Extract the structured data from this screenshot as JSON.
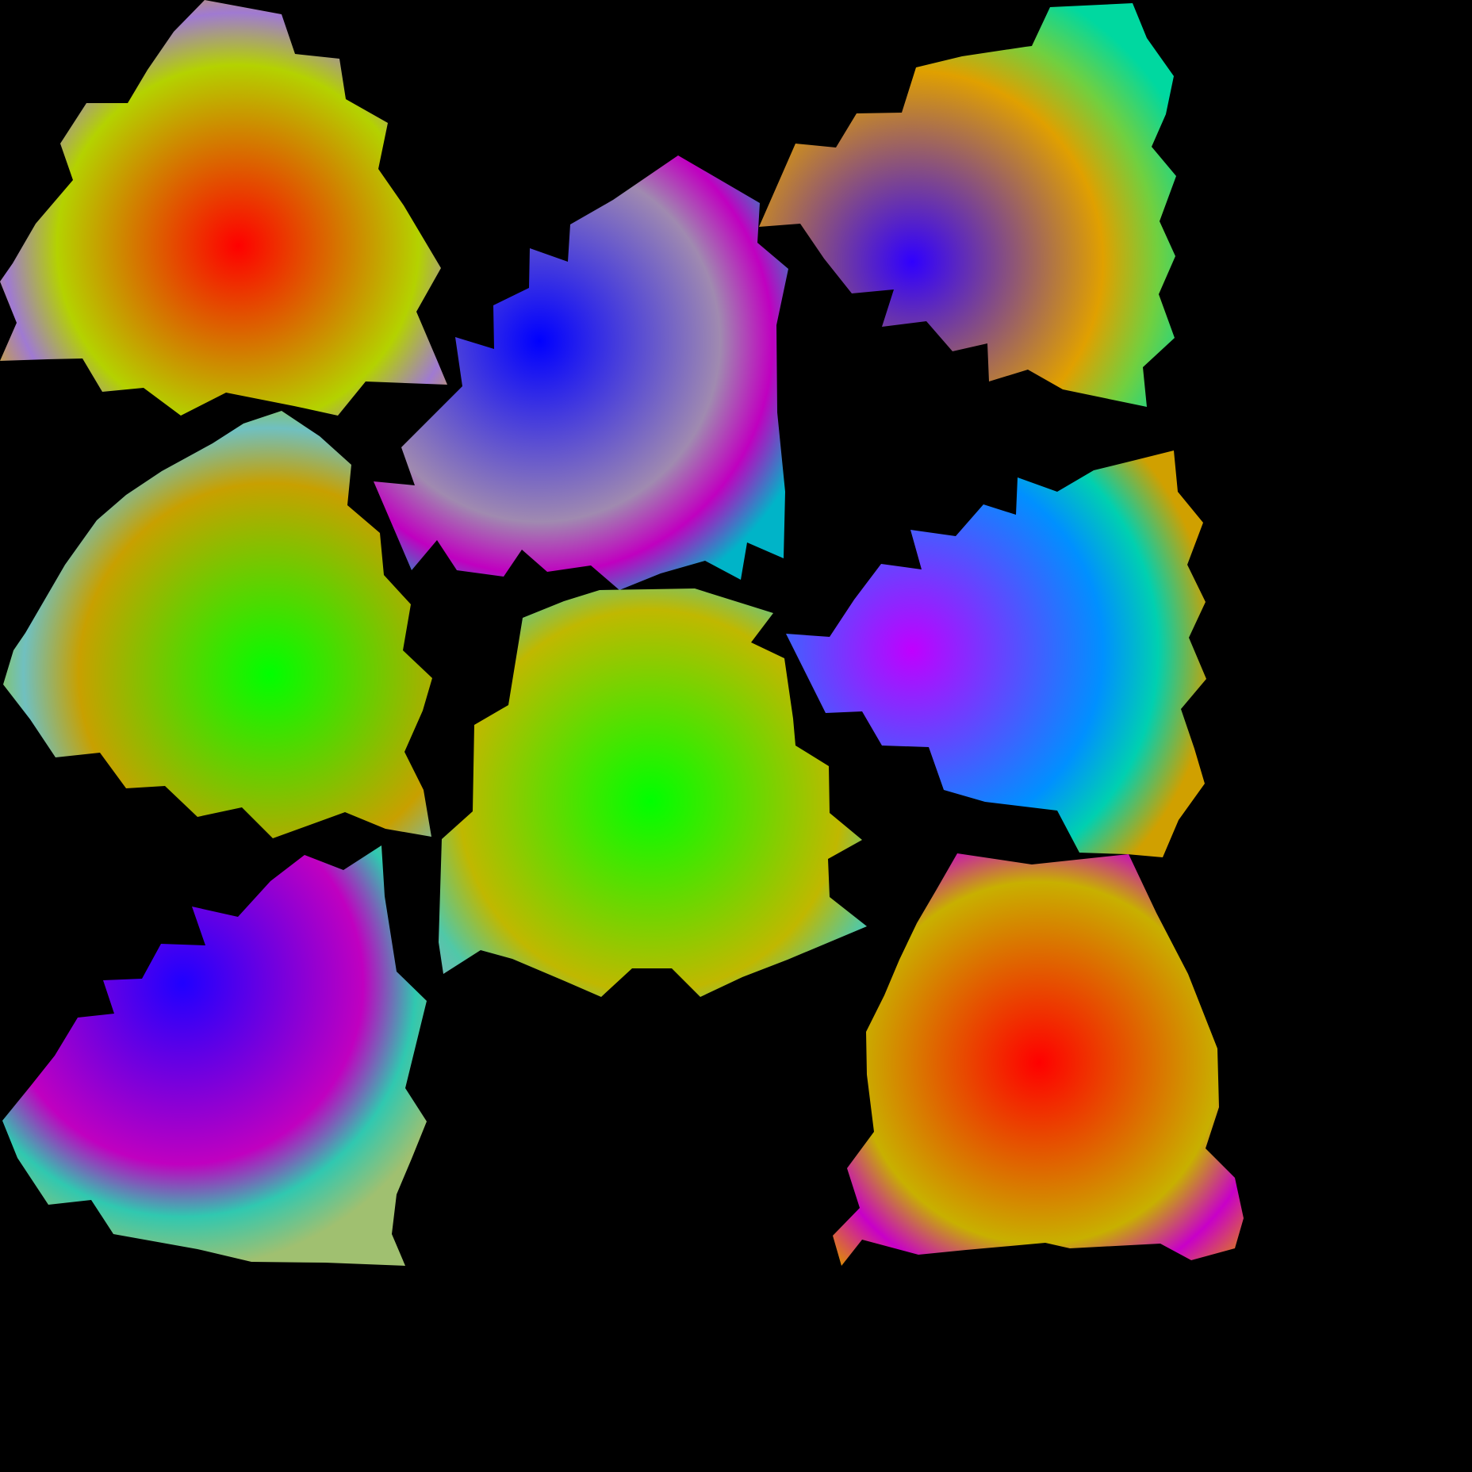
{
  "background": "#000000",
  "pieces": [
    {
      "name": "top-left-piece",
      "center_color": "#ff0000",
      "edge_colors": [
        "#b4d200",
        "#a07ad2",
        "#d6b400"
      ]
    },
    {
      "name": "top-center-piece",
      "center_color": "#0000ff",
      "edge_colors": [
        "#a08ab0",
        "#c000c0",
        "#00b4c8"
      ]
    },
    {
      "name": "top-right-piece",
      "center_color": "#3000ff",
      "edge_colors": [
        "#e0a000",
        "#70d040",
        "#00d8a0"
      ]
    },
    {
      "name": "middle-left-piece",
      "center_color": "#00ff00",
      "edge_colors": [
        "#c8a000",
        "#70c0c0",
        "#a0c800"
      ]
    },
    {
      "name": "center-piece",
      "center_color": "#00ff00",
      "edge_colors": [
        "#c0b800",
        "#50c8a8",
        "#8ca8c0"
      ]
    },
    {
      "name": "middle-right-piece",
      "center_color": "#c000ff",
      "edge_colors": [
        "#0090ff",
        "#00d0b0",
        "#d0a000"
      ]
    },
    {
      "name": "bottom-left-piece",
      "center_color": "#2000ff",
      "edge_colors": [
        "#c000c0",
        "#30c8b0",
        "#a0c070"
      ]
    },
    {
      "name": "bottom-right-piece",
      "center_color": "#ff0000",
      "edge_colors": [
        "#c8b000",
        "#c800c8",
        "#e09000"
      ]
    }
  ]
}
